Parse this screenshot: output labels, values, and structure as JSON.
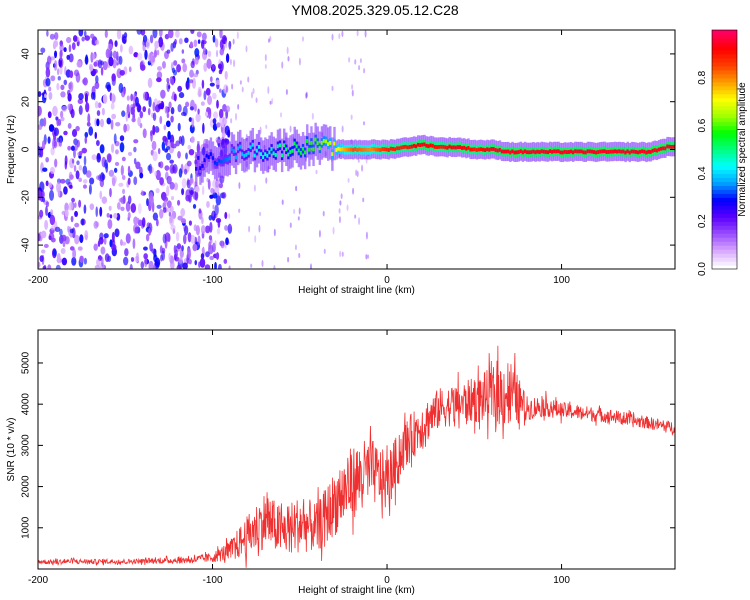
{
  "title": "YM08.2025.329.05.12.C28",
  "chart_data": [
    {
      "type": "heatmap",
      "title": "YM08.2025.329.05.12.C28",
      "xlabel": "Height of straight line (km)",
      "ylabel": "Frequency (Hz)",
      "xlim": [
        -200,
        165
      ],
      "ylim": [
        -50,
        50
      ],
      "xticks": [
        -200,
        -100,
        0,
        100
      ],
      "yticks": [
        -40,
        -20,
        0,
        20,
        40
      ],
      "colorbar": {
        "label": "Normalized spectral amplitude",
        "range": [
          0.0,
          1.0
        ],
        "ticks": [
          0.0,
          0.2,
          0.4,
          0.6,
          0.8
        ],
        "colormap": [
          "#ffffff",
          "#d7a6ff",
          "#9a4dff",
          "#5a00ff",
          "#0000ff",
          "#00a0ff",
          "#00ffff",
          "#00ff80",
          "#00ff00",
          "#a0ff00",
          "#ffff00",
          "#ffa000",
          "#ff4000",
          "#ff0000",
          "#ff0060"
        ]
      },
      "ridge": {
        "x": [
          -110,
          -100,
          -90,
          -80,
          -70,
          -60,
          -50,
          -40,
          -30,
          -20,
          -10,
          0,
          10,
          20,
          30,
          40,
          50,
          60,
          70,
          80,
          90,
          100,
          110,
          120,
          130,
          140,
          150,
          160,
          165
        ],
        "freq": [
          -6,
          -4,
          -2,
          0,
          -1,
          0,
          1,
          2,
          0,
          0,
          0,
          0,
          1,
          2,
          1,
          1,
          0,
          0,
          -1,
          -1,
          -1,
          -1,
          -1,
          -1,
          -1,
          -1,
          -1,
          1,
          1
        ],
        "amplitude": [
          0.25,
          0.3,
          0.35,
          0.4,
          0.45,
          0.5,
          0.55,
          0.6,
          0.7,
          0.85,
          0.8,
          0.9,
          0.9,
          0.95,
          0.9,
          0.95,
          0.9,
          0.95,
          0.95,
          0.95,
          0.95,
          0.95,
          0.95,
          0.95,
          0.95,
          0.95,
          0.95,
          0.95,
          0.95
        ]
      },
      "noise_region_x": [
        -200,
        -100
      ]
    },
    {
      "type": "line",
      "xlabel": "Height of straight line (km)",
      "ylabel": "SNR (10 * v/v)",
      "xlim": [
        -200,
        165
      ],
      "ylim": [
        0,
        5800
      ],
      "xticks": [
        -200,
        -100,
        0,
        100
      ],
      "yticks": [
        1000,
        2000,
        3000,
        4000,
        5000
      ],
      "color": "#f03030",
      "series": [
        {
          "x": [
            -200,
            -190,
            -180,
            -170,
            -160,
            -150,
            -140,
            -130,
            -120,
            -110,
            -100,
            -90,
            -80,
            -70,
            -60,
            -50,
            -40,
            -30,
            -20,
            -10,
            0,
            10,
            20,
            30,
            40,
            50,
            60,
            70,
            80,
            90,
            100,
            110,
            120,
            130,
            140,
            150,
            160,
            165
          ],
          "values": [
            180,
            170,
            190,
            175,
            185,
            180,
            190,
            200,
            210,
            230,
            280,
            450,
            800,
            1200,
            900,
            1100,
            1000,
            1600,
            2100,
            2400,
            2100,
            3000,
            3500,
            3900,
            4000,
            4100,
            4200,
            4300,
            3900,
            3950,
            3850,
            3800,
            3750,
            3700,
            3600,
            3550,
            3450,
            3450
          ],
          "spread": [
            60,
            60,
            60,
            60,
            60,
            60,
            60,
            70,
            80,
            90,
            120,
            250,
            500,
            700,
            600,
            700,
            600,
            800,
            900,
            800,
            700,
            600,
            550,
            500,
            500,
            550,
            700,
            900,
            300,
            250,
            200,
            180,
            180,
            170,
            160,
            150,
            150,
            150
          ]
        }
      ]
    }
  ]
}
